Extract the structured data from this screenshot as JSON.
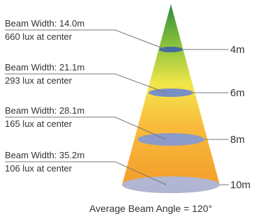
{
  "levels": [
    {
      "beam_width": "Beam Width: 14.0m",
      "lux": "660 lux at center",
      "distance": "4m"
    },
    {
      "beam_width": "Beam Width: 21.1m",
      "lux": "293 lux at center",
      "distance": "6m"
    },
    {
      "beam_width": "Beam Width: 28.1m",
      "lux": "165 lux at center",
      "distance": "8m"
    },
    {
      "beam_width": "Beam Width: 35.2m",
      "lux": "106 lux at center",
      "distance": "10m"
    }
  ],
  "footer": "Average Beam Angle = 120°"
}
